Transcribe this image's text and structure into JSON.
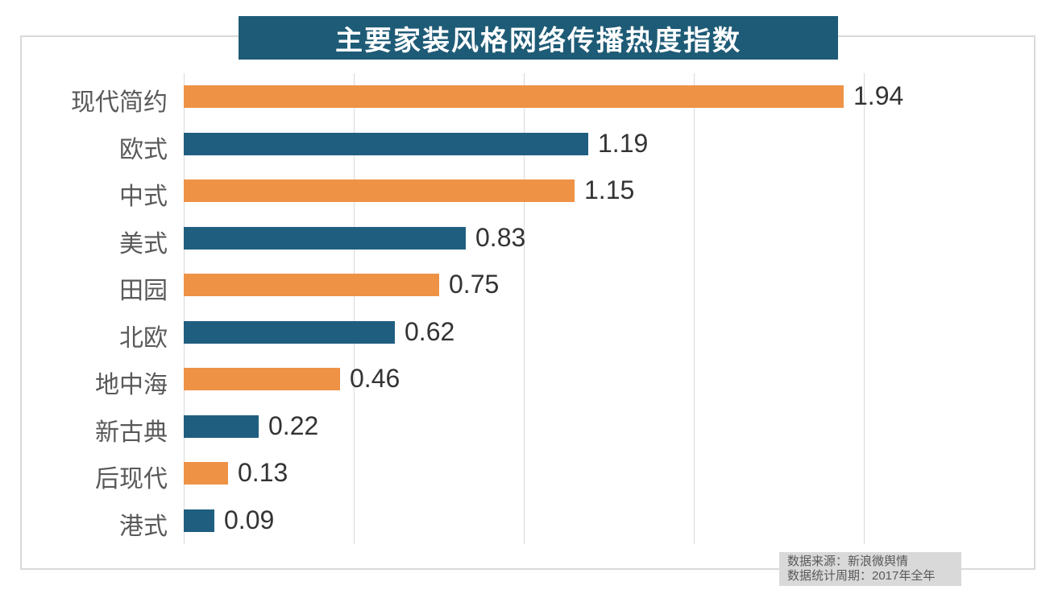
{
  "title": "主要家装风格网络传播热度指数",
  "chart_data": {
    "type": "bar",
    "orientation": "horizontal",
    "title": "主要家装风格网络传播热度指数",
    "categories": [
      "现代简约",
      "欧式",
      "中式",
      "美式",
      "田园",
      "北欧",
      "地中海",
      "新古典",
      "后现代",
      "港式"
    ],
    "values": [
      1.94,
      1.19,
      1.15,
      0.83,
      0.75,
      0.62,
      0.46,
      0.22,
      0.13,
      0.09
    ],
    "value_labels": [
      "1.94",
      "1.19",
      "1.15",
      "0.83",
      "0.75",
      "0.62",
      "0.46",
      "0.22",
      "0.13",
      "0.09"
    ],
    "xlim": [
      0,
      2.0
    ],
    "gridline_interval": 0.5,
    "grid": true,
    "legend": "none",
    "bar_color_pattern": "alternating",
    "bar_colors": [
      "#ee9246",
      "#205e80"
    ]
  },
  "footnote": {
    "line1": "数据来源：新浪微舆情",
    "line2": "数据统计周期：2017年全年"
  },
  "colors": {
    "banner_bg": "#1e5b76",
    "orange": "#ee9246",
    "blue": "#205e80",
    "grid": "#d9d9d9",
    "category_label": "#595959",
    "value_label": "#333333",
    "footnote_bg": "#d9d9d9",
    "footnote_text": "#595959"
  }
}
